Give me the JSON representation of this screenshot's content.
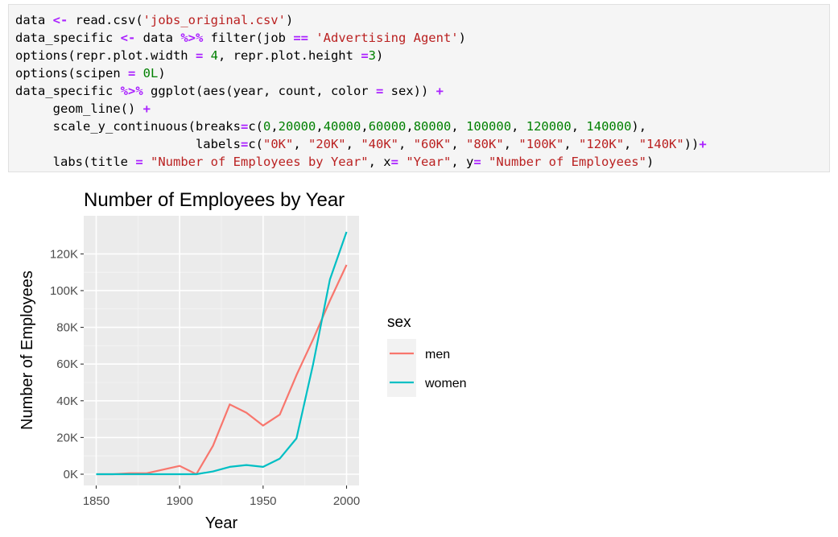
{
  "code_lines": [
    [
      {
        "t": "data "
      },
      {
        "t": "<-",
        "c": "op"
      },
      {
        "t": " read.csv("
      },
      {
        "t": "'jobs_original.csv'",
        "c": "str"
      },
      {
        "t": ")"
      }
    ],
    [
      {
        "t": "data_specific "
      },
      {
        "t": "<-",
        "c": "op"
      },
      {
        "t": " data "
      },
      {
        "t": "%>%",
        "c": "op"
      },
      {
        "t": " filter(job "
      },
      {
        "t": "==",
        "c": "op"
      },
      {
        "t": " "
      },
      {
        "t": "'Advertising Agent'",
        "c": "str"
      },
      {
        "t": ")"
      }
    ],
    [
      {
        "t": "options(repr.plot.width "
      },
      {
        "t": "=",
        "c": "op"
      },
      {
        "t": " "
      },
      {
        "t": "4",
        "c": "num"
      },
      {
        "t": ", repr.plot.height "
      },
      {
        "t": "=",
        "c": "op"
      },
      {
        "t": "3",
        "c": "num"
      },
      {
        "t": ")"
      }
    ],
    [
      {
        "t": "options(scipen "
      },
      {
        "t": "=",
        "c": "op"
      },
      {
        "t": " "
      },
      {
        "t": "0L",
        "c": "num"
      },
      {
        "t": ")"
      }
    ],
    [
      {
        "t": "data_specific "
      },
      {
        "t": "%>%",
        "c": "op"
      },
      {
        "t": " ggplot(aes(year, count, color "
      },
      {
        "t": "=",
        "c": "op"
      },
      {
        "t": " sex)) "
      },
      {
        "t": "+",
        "c": "op"
      }
    ],
    [
      {
        "t": "     geom_line() "
      },
      {
        "t": "+",
        "c": "op"
      }
    ],
    [
      {
        "t": "     scale_y_continuous(breaks"
      },
      {
        "t": "=",
        "c": "op"
      },
      {
        "t": "c("
      },
      {
        "t": "0",
        "c": "num"
      },
      {
        "t": ","
      },
      {
        "t": "20000",
        "c": "num"
      },
      {
        "t": ","
      },
      {
        "t": "40000",
        "c": "num"
      },
      {
        "t": ","
      },
      {
        "t": "60000",
        "c": "num"
      },
      {
        "t": ","
      },
      {
        "t": "80000",
        "c": "num"
      },
      {
        "t": ", "
      },
      {
        "t": "100000",
        "c": "num"
      },
      {
        "t": ", "
      },
      {
        "t": "120000",
        "c": "num"
      },
      {
        "t": ", "
      },
      {
        "t": "140000",
        "c": "num"
      },
      {
        "t": "),"
      }
    ],
    [
      {
        "t": "                        labels"
      },
      {
        "t": "=",
        "c": "op"
      },
      {
        "t": "c("
      },
      {
        "t": "\"0K\"",
        "c": "str"
      },
      {
        "t": ", "
      },
      {
        "t": "\"20K\"",
        "c": "str"
      },
      {
        "t": ", "
      },
      {
        "t": "\"40K\"",
        "c": "str"
      },
      {
        "t": ", "
      },
      {
        "t": "\"60K\"",
        "c": "str"
      },
      {
        "t": ", "
      },
      {
        "t": "\"80K\"",
        "c": "str"
      },
      {
        "t": ", "
      },
      {
        "t": "\"100K\"",
        "c": "str"
      },
      {
        "t": ", "
      },
      {
        "t": "\"120K\"",
        "c": "str"
      },
      {
        "t": ", "
      },
      {
        "t": "\"140K\"",
        "c": "str"
      },
      {
        "t": "))"
      },
      {
        "t": "+",
        "c": "op"
      }
    ],
    [
      {
        "t": "     labs(title "
      },
      {
        "t": "=",
        "c": "op"
      },
      {
        "t": " "
      },
      {
        "t": "\"Number of Employees by Year\"",
        "c": "str"
      },
      {
        "t": ", x"
      },
      {
        "t": "=",
        "c": "op"
      },
      {
        "t": " "
      },
      {
        "t": "\"Year\"",
        "c": "str"
      },
      {
        "t": ", y"
      },
      {
        "t": "=",
        "c": "op"
      },
      {
        "t": " "
      },
      {
        "t": "\"Number of Employees\"",
        "c": "str"
      },
      {
        "t": ")"
      }
    ]
  ],
  "chart_data": {
    "type": "line",
    "title": "Number of Employees by Year",
    "xlabel": "Year",
    "ylabel": "Number of Employees",
    "xlim": [
      1850,
      2000
    ],
    "ylim": [
      0,
      132000
    ],
    "x_ticks": [
      1850,
      1900,
      1950,
      2000
    ],
    "x_tick_labels": [
      "1850",
      "1900",
      "1950",
      "2000"
    ],
    "y_ticks": [
      0,
      20000,
      40000,
      60000,
      80000,
      100000,
      120000
    ],
    "y_tick_labels": [
      "0K",
      "20K",
      "40K",
      "60K",
      "80K",
      "100K",
      "120K"
    ],
    "grid": true,
    "panel_color": "#ebebeb",
    "legend": {
      "title": "sex",
      "position": "right"
    },
    "x": [
      1850,
      1860,
      1870,
      1880,
      1900,
      1910,
      1920,
      1930,
      1940,
      1950,
      1960,
      1970,
      1980,
      1990,
      2000
    ],
    "series": [
      {
        "name": "men",
        "color": "#f8766d",
        "values": [
          0,
          0,
          500,
          500,
          4500,
          0,
          15500,
          38000,
          33500,
          26500,
          32500,
          54000,
          73500,
          94500,
          114000
        ]
      },
      {
        "name": "women",
        "color": "#00bfc4",
        "values": [
          0,
          0,
          0,
          0,
          0,
          0,
          1500,
          4000,
          5000,
          4000,
          8500,
          19500,
          60000,
          106000,
          132000
        ]
      }
    ]
  }
}
